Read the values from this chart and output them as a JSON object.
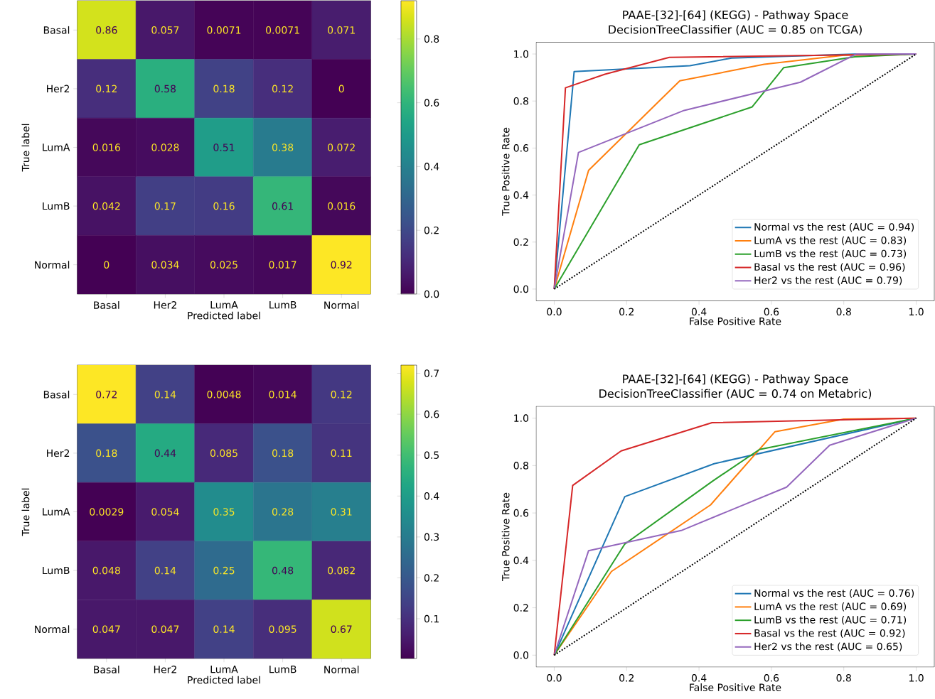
{
  "chart_data": [
    {
      "type": "heatmap",
      "xlabel": "Predicted label",
      "ylabel": "True label",
      "categories": [
        "Basal",
        "Her2",
        "LumA",
        "LumB",
        "Normal"
      ],
      "y_categories": [
        "Basal",
        "Her2",
        "LumA",
        "LumB",
        "Normal"
      ],
      "cells": [
        [
          0.86,
          0.057,
          0.0071,
          0.0071,
          0.071
        ],
        [
          0.12,
          0.58,
          0.18,
          0.12,
          0
        ],
        [
          0.016,
          0.028,
          0.51,
          0.38,
          0.072
        ],
        [
          0.042,
          0.17,
          0.16,
          0.61,
          0.016
        ],
        [
          0,
          0.034,
          0.025,
          0.017,
          0.92
        ]
      ],
      "clim": [
        0,
        0.92
      ],
      "cticks": [
        {
          "value": 0,
          "label": "0.0"
        },
        {
          "value": 0.2,
          "label": "0.2"
        },
        {
          "value": 0.4,
          "label": "0.4"
        },
        {
          "value": 0.6,
          "label": "0.6"
        },
        {
          "value": 0.8,
          "label": "0.8"
        }
      ],
      "data_labels": true
    },
    {
      "type": "line",
      "title": "PAAE-[32]-[64] (KEGG) - Pathway Space",
      "subtitle": "DecisionTreeClassifier (AUC = 0.85 on TCGA)",
      "xlabel": "False Positive Rate",
      "ylabel": "True Positive Rate",
      "xlim": [
        -0.05,
        1.05
      ],
      "ylim": [
        -0.05,
        1.05
      ],
      "xticks": [
        {
          "value": 0,
          "label": "0.0"
        },
        {
          "value": 0.2,
          "label": "0.2"
        },
        {
          "value": 0.4,
          "label": "0.4"
        },
        {
          "value": 0.6,
          "label": "0.6"
        },
        {
          "value": 0.8,
          "label": "0.8"
        },
        {
          "value": 1,
          "label": "1.0"
        }
      ],
      "yticks": [
        {
          "value": 0,
          "label": "0.0"
        },
        {
          "value": 0.2,
          "label": "0.2"
        },
        {
          "value": 0.4,
          "label": "0.4"
        },
        {
          "value": 0.6,
          "label": "0.6"
        },
        {
          "value": 0.8,
          "label": "0.8"
        },
        {
          "value": 1,
          "label": "1.0"
        }
      ],
      "legend": "bottom right",
      "series": [
        {
          "name": "Normal vs the rest (AUC = 0.94)",
          "color": "#1f77b4",
          "x": [
            0,
            0.055,
            0.375,
            0.49,
            0.84,
            1
          ],
          "values": [
            0,
            0.925,
            0.95,
            0.983,
            1.0,
            1
          ]
        },
        {
          "name": "LumA vs the rest (AUC = 0.83)",
          "color": "#ff7f0e",
          "x": [
            0,
            0.095,
            0.347,
            0.58,
            0.8,
            1
          ],
          "values": [
            0,
            0.505,
            0.886,
            0.956,
            0.995,
            1
          ]
        },
        {
          "name": "LumB vs the rest (AUC = 0.73)",
          "color": "#2ca02c",
          "x": [
            0,
            0.235,
            0.547,
            0.634,
            0.83,
            1
          ],
          "values": [
            0,
            0.614,
            0.775,
            0.942,
            0.988,
            1
          ]
        },
        {
          "name": "Basal vs the rest (AUC = 0.96)",
          "color": "#d62728",
          "x": [
            0,
            0.031,
            0.14,
            0.318,
            1
          ],
          "values": [
            0,
            0.856,
            0.914,
            0.986,
            1
          ]
        },
        {
          "name": "Her2 vs the rest (AUC = 0.79)",
          "color": "#9467bd",
          "x": [
            0,
            0.067,
            0.359,
            0.68,
            0.834,
            1
          ],
          "values": [
            0,
            0.581,
            0.76,
            0.88,
            1.0,
            1
          ]
        },
        {
          "color": "#000000",
          "line_style": "dotted",
          "x": [
            0,
            1
          ],
          "values": [
            0,
            1
          ]
        }
      ]
    },
    {
      "type": "heatmap",
      "xlabel": "Predicted label",
      "ylabel": "True label",
      "categories": [
        "Basal",
        "Her2",
        "LumA",
        "LumB",
        "Normal"
      ],
      "y_categories": [
        "Basal",
        "Her2",
        "LumA",
        "LumB",
        "Normal"
      ],
      "cells": [
        [
          0.72,
          0.14,
          0.0048,
          0.014,
          0.12
        ],
        [
          0.18,
          0.44,
          0.085,
          0.18,
          0.11
        ],
        [
          0.0029,
          0.054,
          0.35,
          0.28,
          0.31
        ],
        [
          0.048,
          0.14,
          0.25,
          0.48,
          0.082
        ],
        [
          0.047,
          0.047,
          0.14,
          0.095,
          0.67
        ]
      ],
      "clim": [
        0.0029,
        0.72
      ],
      "cticks": [
        0.1,
        0.2,
        0.3,
        0.4,
        0.5,
        0.6,
        0.7
      ],
      "data_labels": true
    },
    {
      "type": "line",
      "title": "PAAE-[32]-[64] (KEGG) - Pathway Space",
      "subtitle": "DecisionTreeClassifier (AUC = 0.74 on Metabric)",
      "xlabel": "False Positive Rate",
      "ylabel": "True Positive Rate",
      "xlim": [
        -0.05,
        1.05
      ],
      "ylim": [
        -0.05,
        1.05
      ],
      "xticks": [
        {
          "value": 0,
          "label": "0.0"
        },
        {
          "value": 0.2,
          "label": "0.2"
        },
        {
          "value": 0.4,
          "label": "0.4"
        },
        {
          "value": 0.6,
          "label": "0.6"
        },
        {
          "value": 0.8,
          "label": "0.8"
        },
        {
          "value": 1,
          "label": "1.0"
        }
      ],
      "yticks": [
        {
          "value": 0,
          "label": "0.0"
        },
        {
          "value": 0.2,
          "label": "0.2"
        },
        {
          "value": 0.4,
          "label": "0.4"
        },
        {
          "value": 0.6,
          "label": "0.6"
        },
        {
          "value": 0.8,
          "label": "0.8"
        },
        {
          "value": 1,
          "label": "1.0"
        }
      ],
      "legend": "bottom right",
      "series": [
        {
          "name": "Normal vs the rest (AUC = 0.76)",
          "color": "#1f77b4",
          "x": [
            0,
            0.195,
            0.442,
            1
          ],
          "values": [
            0,
            0.669,
            0.808,
            1
          ]
        },
        {
          "name": "LumA vs the rest (AUC = 0.69)",
          "color": "#ff7f0e",
          "x": [
            0,
            0.158,
            0.432,
            0.61,
            0.8,
            1
          ],
          "values": [
            0,
            0.353,
            0.634,
            0.943,
            0.996,
            1
          ]
        },
        {
          "name": "LumB vs the rest (AUC = 0.71)",
          "color": "#2ca02c",
          "x": [
            0,
            0.195,
            0.438,
            0.567,
            1
          ],
          "values": [
            0,
            0.469,
            0.735,
            0.868,
            1
          ]
        },
        {
          "name": "Basal vs the rest (AUC = 0.92)",
          "color": "#d62728",
          "x": [
            0,
            0.051,
            0.185,
            0.436,
            1
          ],
          "values": [
            0,
            0.716,
            0.862,
            0.981,
            1
          ]
        },
        {
          "name": "Her2 vs the rest (AUC = 0.65)",
          "color": "#9467bd",
          "x": [
            0,
            0.095,
            0.351,
            0.642,
            0.761,
            1
          ],
          "values": [
            0,
            0.441,
            0.526,
            0.709,
            0.886,
            1
          ]
        },
        {
          "color": "#000000",
          "line_style": "dotted",
          "x": [
            0,
            1
          ],
          "values": [
            0,
            1
          ]
        }
      ]
    }
  ]
}
